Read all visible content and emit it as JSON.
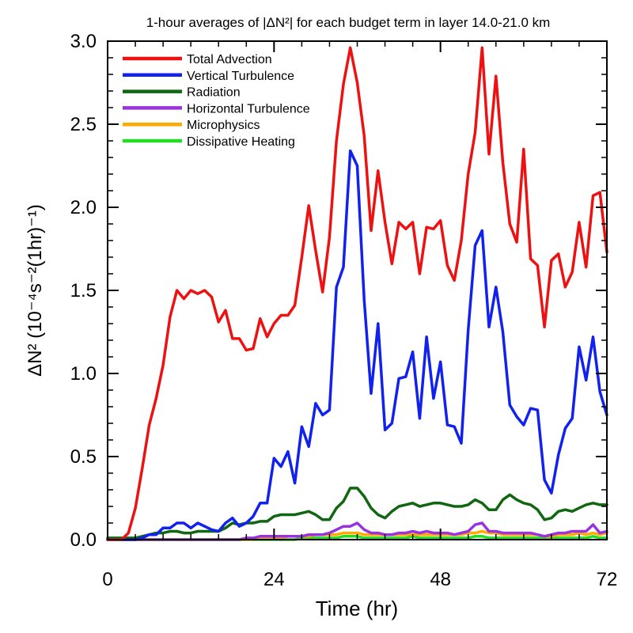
{
  "chart_data": {
    "type": "line",
    "title": "1-hour averages of |ΔN²| for each budget term in layer 14.0-21.0 km",
    "xlabel": "Time (hr)",
    "ylabel": "ΔN² (10⁻⁴s⁻²(1hr)⁻¹)",
    "xlim": [
      0,
      72
    ],
    "ylim": [
      0,
      3.0
    ],
    "xticks": [
      0,
      24,
      48,
      72
    ],
    "yticks": [
      0.0,
      0.5,
      1.0,
      1.5,
      2.0,
      2.5,
      3.0
    ],
    "ytick_labels": [
      "0.0",
      "0.5",
      "1.0",
      "1.5",
      "2.0",
      "2.5",
      "3.0"
    ],
    "legend_position": "top-left",
    "grid": false,
    "series": [
      {
        "name": "Total Advection",
        "color": "#ee1111",
        "x": [
          0,
          1,
          2,
          3,
          4,
          5,
          6,
          7,
          8,
          9,
          10,
          11,
          12,
          13,
          14,
          15,
          16,
          17,
          18,
          19,
          20,
          21,
          22,
          23,
          24,
          25,
          26,
          27,
          28,
          29,
          30,
          31,
          32,
          33,
          34,
          35,
          36,
          37,
          38,
          39,
          40,
          41,
          42,
          43,
          44,
          45,
          46,
          47,
          48,
          49,
          50,
          51,
          52,
          53,
          54,
          55,
          56,
          57,
          58,
          59,
          60,
          61,
          62,
          63,
          64,
          65,
          66,
          67,
          68,
          69,
          70,
          71,
          72
        ],
        "values": [
          0,
          0,
          0,
          0.04,
          0.19,
          0.43,
          0.69,
          0.85,
          1.05,
          1.34,
          1.5,
          1.45,
          1.5,
          1.48,
          1.5,
          1.46,
          1.31,
          1.38,
          1.21,
          1.21,
          1.14,
          1.15,
          1.33,
          1.22,
          1.3,
          1.35,
          1.35,
          1.41,
          1.7,
          2.01,
          1.74,
          1.49,
          1.82,
          2.4,
          2.74,
          2.96,
          2.75,
          2.43,
          1.86,
          2.22,
          1.91,
          1.66,
          1.91,
          1.87,
          1.91,
          1.6,
          1.88,
          1.87,
          1.92,
          1.65,
          1.56,
          1.8,
          2.2,
          2.45,
          2.96,
          2.32,
          2.79,
          2.27,
          1.9,
          1.79,
          2.35,
          1.69,
          1.65,
          1.28,
          1.68,
          1.72,
          1.52,
          1.61,
          1.91,
          1.64,
          2.07,
          2.09,
          1.73
        ]
      },
      {
        "name": "Vertical Turbulence",
        "color": "#1122ee",
        "x": [
          0,
          1,
          2,
          3,
          4,
          5,
          6,
          7,
          8,
          9,
          10,
          11,
          12,
          13,
          14,
          15,
          16,
          17,
          18,
          19,
          20,
          21,
          22,
          23,
          24,
          25,
          26,
          27,
          28,
          29,
          30,
          31,
          32,
          33,
          34,
          35,
          36,
          37,
          38,
          39,
          40,
          41,
          42,
          43,
          44,
          45,
          46,
          47,
          48,
          49,
          50,
          51,
          52,
          53,
          54,
          55,
          56,
          57,
          58,
          59,
          60,
          61,
          62,
          63,
          64,
          65,
          66,
          67,
          68,
          69,
          70,
          71,
          72
        ],
        "values": [
          0,
          0,
          0,
          0,
          0,
          0.01,
          0.03,
          0.03,
          0.07,
          0.07,
          0.1,
          0.1,
          0.07,
          0.1,
          0.08,
          0.06,
          0.05,
          0.1,
          0.13,
          0.08,
          0.1,
          0.14,
          0.22,
          0.22,
          0.49,
          0.44,
          0.53,
          0.34,
          0.68,
          0.56,
          0.82,
          0.75,
          0.78,
          1.52,
          1.64,
          2.34,
          2.25,
          1.44,
          0.88,
          1.3,
          0.66,
          0.7,
          0.97,
          0.98,
          1.13,
          0.73,
          1.22,
          0.85,
          1.07,
          0.69,
          0.68,
          0.58,
          1.26,
          1.77,
          1.86,
          1.28,
          1.52,
          1.25,
          0.81,
          0.74,
          0.69,
          0.79,
          0.78,
          0.36,
          0.28,
          0.51,
          0.67,
          0.73,
          1.16,
          0.96,
          1.22,
          0.89,
          0.75
        ]
      },
      {
        "name": "Radiation",
        "color": "#116611",
        "x": [
          0,
          1,
          2,
          3,
          4,
          5,
          6,
          7,
          8,
          9,
          10,
          11,
          12,
          13,
          14,
          15,
          16,
          17,
          18,
          19,
          20,
          21,
          22,
          23,
          24,
          25,
          26,
          27,
          28,
          29,
          30,
          31,
          32,
          33,
          34,
          35,
          36,
          37,
          38,
          39,
          40,
          41,
          42,
          43,
          44,
          45,
          46,
          47,
          48,
          49,
          50,
          51,
          52,
          53,
          54,
          55,
          56,
          57,
          58,
          59,
          60,
          61,
          62,
          63,
          64,
          65,
          66,
          67,
          68,
          69,
          70,
          71,
          72
        ],
        "values": [
          0.01,
          0.01,
          0.01,
          0.01,
          0.01,
          0.02,
          0.03,
          0.04,
          0.04,
          0.05,
          0.05,
          0.04,
          0.04,
          0.05,
          0.05,
          0.05,
          0.05,
          0.07,
          0.1,
          0.09,
          0.1,
          0.1,
          0.11,
          0.11,
          0.14,
          0.15,
          0.15,
          0.15,
          0.16,
          0.17,
          0.15,
          0.12,
          0.12,
          0.19,
          0.23,
          0.31,
          0.31,
          0.26,
          0.19,
          0.15,
          0.13,
          0.17,
          0.2,
          0.21,
          0.22,
          0.2,
          0.21,
          0.22,
          0.22,
          0.21,
          0.2,
          0.2,
          0.21,
          0.24,
          0.22,
          0.18,
          0.18,
          0.24,
          0.27,
          0.24,
          0.22,
          0.21,
          0.18,
          0.12,
          0.13,
          0.17,
          0.18,
          0.17,
          0.19,
          0.21,
          0.22,
          0.21,
          0.21
        ]
      },
      {
        "name": "Horizontal Turbulence",
        "color": "#9933dd",
        "x": [
          0,
          1,
          2,
          3,
          4,
          5,
          6,
          7,
          8,
          9,
          10,
          11,
          12,
          13,
          14,
          15,
          16,
          17,
          18,
          19,
          20,
          21,
          22,
          23,
          24,
          25,
          26,
          27,
          28,
          29,
          30,
          31,
          32,
          33,
          34,
          35,
          36,
          37,
          38,
          39,
          40,
          41,
          42,
          43,
          44,
          45,
          46,
          47,
          48,
          49,
          50,
          51,
          52,
          53,
          54,
          55,
          56,
          57,
          58,
          59,
          60,
          61,
          62,
          63,
          64,
          65,
          66,
          67,
          68,
          69,
          70,
          71,
          72
        ],
        "values": [
          0,
          0,
          0,
          0,
          0,
          0,
          0,
          0,
          0,
          0,
          0,
          0,
          0,
          0,
          0,
          0,
          0,
          0,
          0,
          0,
          0.01,
          0.01,
          0.02,
          0.02,
          0.02,
          0.02,
          0.02,
          0.02,
          0.02,
          0.03,
          0.03,
          0.03,
          0.04,
          0.06,
          0.08,
          0.08,
          0.1,
          0.06,
          0.04,
          0.04,
          0.03,
          0.03,
          0.04,
          0.04,
          0.05,
          0.04,
          0.05,
          0.04,
          0.04,
          0.04,
          0.03,
          0.04,
          0.05,
          0.09,
          0.1,
          0.05,
          0.05,
          0.04,
          0.04,
          0.04,
          0.04,
          0.04,
          0.03,
          0.02,
          0.03,
          0.04,
          0.04,
          0.05,
          0.05,
          0.05,
          0.09,
          0.04,
          0.05
        ]
      },
      {
        "name": "Microphysics",
        "color": "#ffaa00",
        "x": [
          0,
          1,
          2,
          3,
          4,
          5,
          6,
          7,
          8,
          9,
          10,
          11,
          12,
          13,
          14,
          15,
          16,
          17,
          18,
          19,
          20,
          21,
          22,
          23,
          24,
          25,
          26,
          27,
          28,
          29,
          30,
          31,
          32,
          33,
          34,
          35,
          36,
          37,
          38,
          39,
          40,
          41,
          42,
          43,
          44,
          45,
          46,
          47,
          48,
          49,
          50,
          51,
          52,
          53,
          54,
          55,
          56,
          57,
          58,
          59,
          60,
          61,
          62,
          63,
          64,
          65,
          66,
          67,
          68,
          69,
          70,
          71,
          72
        ],
        "values": [
          0,
          0,
          0,
          0,
          0,
          0,
          0,
          0,
          0,
          0,
          0,
          0,
          0,
          0,
          0,
          0,
          0,
          0,
          0,
          0,
          0,
          0,
          0.01,
          0.01,
          0.01,
          0.01,
          0.02,
          0.02,
          0.02,
          0.02,
          0.03,
          0.03,
          0.03,
          0.03,
          0.04,
          0.04,
          0.04,
          0.03,
          0.03,
          0.03,
          0.03,
          0.03,
          0.03,
          0.03,
          0.03,
          0.03,
          0.03,
          0.03,
          0.03,
          0.03,
          0.03,
          0.03,
          0.04,
          0.04,
          0.05,
          0.04,
          0.04,
          0.03,
          0.03,
          0.03,
          0.03,
          0.03,
          0.03,
          0.02,
          0.02,
          0.03,
          0.03,
          0.03,
          0.04,
          0.03,
          0.04,
          0.03,
          0.04
        ]
      },
      {
        "name": "Dissipative Heating",
        "color": "#22dd22",
        "x": [
          0,
          1,
          2,
          3,
          4,
          5,
          6,
          7,
          8,
          9,
          10,
          11,
          12,
          13,
          14,
          15,
          16,
          17,
          18,
          19,
          20,
          21,
          22,
          23,
          24,
          25,
          26,
          27,
          28,
          29,
          30,
          31,
          32,
          33,
          34,
          35,
          36,
          37,
          38,
          39,
          40,
          41,
          42,
          43,
          44,
          45,
          46,
          47,
          48,
          49,
          50,
          51,
          52,
          53,
          54,
          55,
          56,
          57,
          58,
          59,
          60,
          61,
          62,
          63,
          64,
          65,
          66,
          67,
          68,
          69,
          70,
          71,
          72
        ],
        "values": [
          0,
          0,
          0,
          0,
          0,
          0,
          0,
          0,
          0,
          0,
          0,
          0,
          0,
          0,
          0,
          0,
          0,
          0,
          0,
          0,
          0,
          0,
          0,
          0,
          0,
          0,
          0,
          0,
          0.01,
          0.01,
          0.01,
          0.01,
          0.01,
          0.01,
          0.02,
          0.02,
          0.02,
          0.01,
          0.01,
          0.01,
          0.01,
          0.01,
          0.01,
          0.01,
          0.02,
          0.01,
          0.01,
          0.01,
          0.01,
          0.01,
          0.01,
          0.01,
          0.01,
          0.02,
          0.02,
          0.01,
          0.01,
          0.01,
          0.01,
          0.01,
          0.01,
          0.01,
          0.01,
          0.01,
          0.01,
          0.01,
          0.01,
          0.01,
          0.01,
          0.01,
          0.02,
          0.01,
          0.01
        ]
      }
    ]
  }
}
